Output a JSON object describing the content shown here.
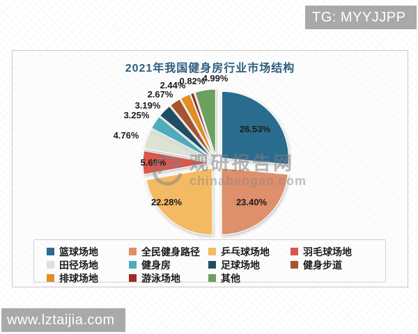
{
  "overlay": {
    "tg_badge": "TG: MYYJJPP",
    "site_badge": "www.lztaijia.com"
  },
  "watermark": {
    "name": "观研报告网",
    "domain": "chinabaogao.com"
  },
  "chart_data": {
    "type": "pie",
    "title": "2021年我国健身房行业市场结构",
    "categories": [
      "篮球场地",
      "全民健身路径",
      "乒乓球场地",
      "羽毛球场地",
      "田径场地",
      "健身房",
      "足球场地",
      "健身步道",
      "排球场地",
      "游泳场地",
      "其他"
    ],
    "values": [
      26.53,
      23.4,
      22.28,
      5.69,
      4.76,
      3.25,
      3.19,
      2.67,
      2.44,
      0.82,
      4.99
    ],
    "labels": [
      "26.53%",
      "23.40%",
      "22.28%",
      "5.69%",
      "4.76%",
      "3.25%",
      "3.19%",
      "2.67%",
      "2.44%",
      "0.82%",
      "4.99%"
    ],
    "colors": [
      "#2a6c8d",
      "#de8f6b",
      "#f4b963",
      "#d9574d",
      "#dce2d6",
      "#4facba",
      "#1f4e63",
      "#a7532f",
      "#e28e24",
      "#9d2b24",
      "#6ba05e"
    ],
    "start_angle_deg": 0,
    "clockwise": true,
    "exploded": true,
    "legend_position": "bottom",
    "title_color": "#2d5f7f"
  }
}
